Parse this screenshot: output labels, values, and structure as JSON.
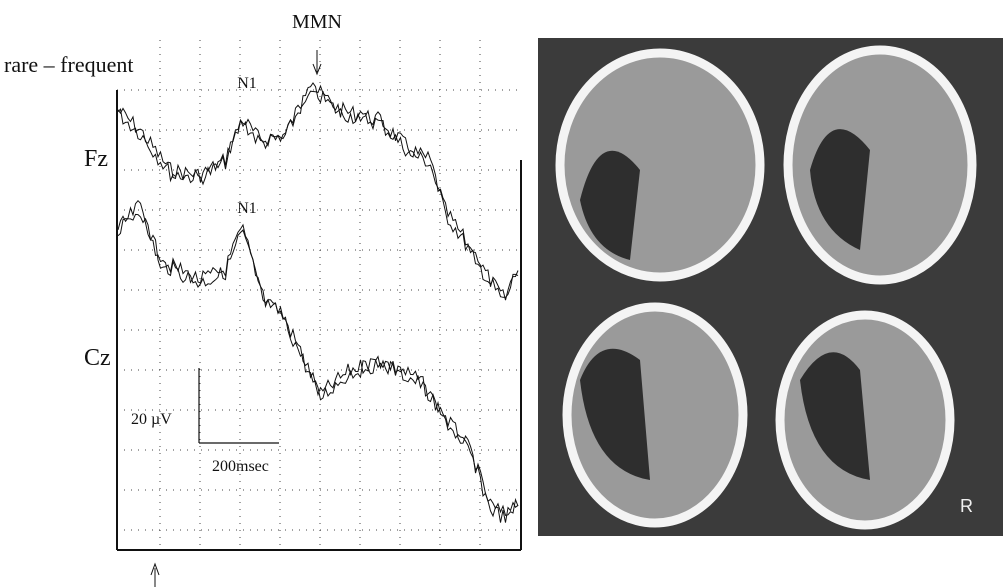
{
  "figure": {
    "title": "MMN",
    "condition": "rare – frequent",
    "peaks": [
      "N1",
      "N1"
    ],
    "channels": [
      "Fz",
      "Cz"
    ],
    "scale": {
      "amplitude": "20 µV",
      "time": "200msec"
    },
    "ct_label": "R"
  }
}
